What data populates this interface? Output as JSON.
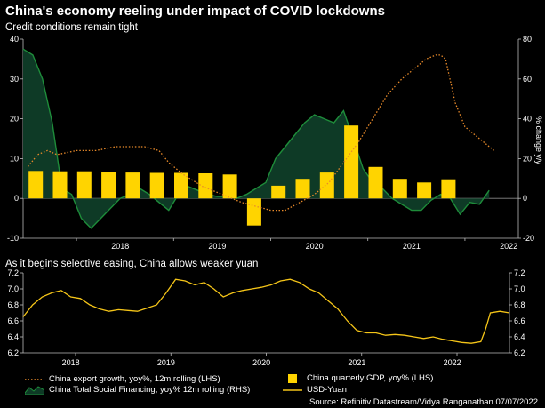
{
  "title": "China's economy reeling under impact of COVID lockdowns",
  "subtitle_top": "Credit conditions remain tight",
  "subtitle_bottom": "As it begins selective easing, China allows weaker yuan",
  "legend": {
    "export": "China export growth, yoy%, 12m rolling (LHS)",
    "tsf": "China Total Social Financing, yoy% 12m rolling (RHS)",
    "gdp": "China quarterly GDP, yoy% (LHS)",
    "yuan": "USD-Yuan"
  },
  "source": "Source: Refinitiv Datastream/Vidya Ranganathan 07/07/2022",
  "colors": {
    "gdp": "#FFD400",
    "export": "#E88A2A",
    "tsf_line": "#1E8C3A",
    "tsf_fill": "#0E3A26",
    "yuan": "#F5C518",
    "axis": "#bbbbbb"
  },
  "chart_data": [
    {
      "type": "bar+line+area",
      "title": "Credit conditions remain tight",
      "x_range": [
        2017.45,
        2022.55
      ],
      "ylim_left": [
        -10,
        40
      ],
      "ylim_right": [
        -20,
        80
      ],
      "ylabel_right": "% change y/y",
      "yticks_left": [
        "40",
        "30",
        "20",
        "10",
        "0",
        "-10"
      ],
      "yticks_right": [
        "80",
        "60",
        "40",
        "20",
        "0",
        "-20"
      ],
      "xticks": [
        "2018",
        "2019",
        "2020",
        "2021",
        "2022"
      ],
      "gdp_quarterly": {
        "name": "China quarterly GDP, yoy% (LHS)",
        "x": [
          2017.58,
          2017.83,
          2018.08,
          2018.33,
          2018.58,
          2018.83,
          2019.08,
          2019.33,
          2019.58,
          2019.83,
          2020.08,
          2020.33,
          2020.58,
          2020.83,
          2021.08,
          2021.33,
          2021.58,
          2021.83
        ],
        "values": [
          6.9,
          6.8,
          6.8,
          6.7,
          6.5,
          6.4,
          6.4,
          6.3,
          6.0,
          -6.8,
          3.2,
          4.9,
          6.5,
          18.3,
          7.9,
          4.9,
          4.0,
          4.8
        ]
      },
      "export_growth": {
        "name": "China export growth, yoy%, 12m rolling (LHS)",
        "x": [
          2017.5,
          2017.6,
          2017.7,
          2017.8,
          2018.0,
          2018.2,
          2018.4,
          2018.5,
          2018.7,
          2018.85,
          2018.95,
          2019.1,
          2019.3,
          2019.5,
          2019.7,
          2019.85,
          2020.0,
          2020.15,
          2020.3,
          2020.45,
          2020.6,
          2020.75,
          2020.9,
          2021.05,
          2021.2,
          2021.35,
          2021.5,
          2021.6,
          2021.7,
          2021.75,
          2021.8,
          2021.9,
          2022.0,
          2022.15,
          2022.3
        ],
        "values": [
          8,
          11,
          12,
          11,
          12,
          12,
          13,
          13,
          13,
          12,
          9,
          6,
          3,
          1,
          -1,
          -2,
          -3,
          -3,
          -1,
          1,
          4,
          9,
          14,
          20,
          26,
          30,
          33,
          35,
          36,
          36,
          35,
          24,
          18,
          15,
          12
        ]
      },
      "tsf": {
        "name": "China Total Social Financing, yoy% 12m rolling (RHS)",
        "x": [
          2017.45,
          2017.55,
          2017.65,
          2017.75,
          2017.85,
          2017.95,
          2018.05,
          2018.15,
          2018.25,
          2018.35,
          2018.45,
          2018.55,
          2018.65,
          2018.75,
          2018.85,
          2018.95,
          2019.05,
          2019.15,
          2019.25,
          2019.35,
          2019.45,
          2019.55,
          2019.65,
          2019.75,
          2019.85,
          2019.95,
          2020.05,
          2020.15,
          2020.25,
          2020.35,
          2020.45,
          2020.55,
          2020.65,
          2020.75,
          2020.85,
          2020.95,
          2021.05,
          2021.15,
          2021.25,
          2021.35,
          2021.45,
          2021.55,
          2021.65,
          2021.75,
          2021.85,
          2021.95,
          2022.05,
          2022.15,
          2022.25
        ],
        "values": [
          75,
          72,
          60,
          38,
          5,
          2,
          -10,
          -15,
          -10,
          -5,
          0,
          2,
          5,
          2,
          -2,
          -6,
          2,
          6,
          4,
          2,
          1,
          1,
          0,
          2,
          5,
          8,
          20,
          26,
          32,
          38,
          42,
          40,
          38,
          44,
          30,
          15,
          8,
          5,
          0,
          -3,
          -6,
          -6,
          -1,
          2,
          0,
          -8,
          -2,
          -3,
          4
        ]
      }
    },
    {
      "type": "line",
      "title": "As it begins selective easing, China allows weaker yuan",
      "name": "USD-Yuan",
      "ylim": [
        6.2,
        7.2
      ],
      "yticks": [
        "7.2",
        "7.0",
        "6.8",
        "6.6",
        "6.4",
        "6.2"
      ],
      "xticks": [
        "2018",
        "2019",
        "2020",
        "2021",
        "2022"
      ],
      "x_range": [
        2017.45,
        2022.55
      ],
      "x": [
        2017.45,
        2017.55,
        2017.65,
        2017.75,
        2017.85,
        2017.95,
        2018.05,
        2018.15,
        2018.25,
        2018.35,
        2018.45,
        2018.55,
        2018.65,
        2018.75,
        2018.85,
        2018.95,
        2019.05,
        2019.15,
        2019.25,
        2019.35,
        2019.45,
        2019.55,
        2019.65,
        2019.75,
        2019.85,
        2019.95,
        2020.05,
        2020.15,
        2020.25,
        2020.35,
        2020.45,
        2020.55,
        2020.65,
        2020.75,
        2020.85,
        2020.95,
        2021.05,
        2021.15,
        2021.25,
        2021.35,
        2021.45,
        2021.55,
        2021.65,
        2021.75,
        2021.85,
        2021.95,
        2022.05,
        2022.15,
        2022.25,
        2022.3,
        2022.35,
        2022.45,
        2022.55
      ],
      "values": [
        6.65,
        6.8,
        6.9,
        6.95,
        6.98,
        6.9,
        6.88,
        6.8,
        6.75,
        6.72,
        6.74,
        6.73,
        6.72,
        6.76,
        6.8,
        6.95,
        7.12,
        7.1,
        7.05,
        7.08,
        7.0,
        6.9,
        6.95,
        6.98,
        7.0,
        7.02,
        7.05,
        7.1,
        7.12,
        7.08,
        7.0,
        6.95,
        6.85,
        6.75,
        6.6,
        6.48,
        6.45,
        6.45,
        6.42,
        6.43,
        6.42,
        6.4,
        6.38,
        6.4,
        6.37,
        6.35,
        6.33,
        6.32,
        6.34,
        6.5,
        6.7,
        6.72,
        6.7
      ]
    }
  ]
}
